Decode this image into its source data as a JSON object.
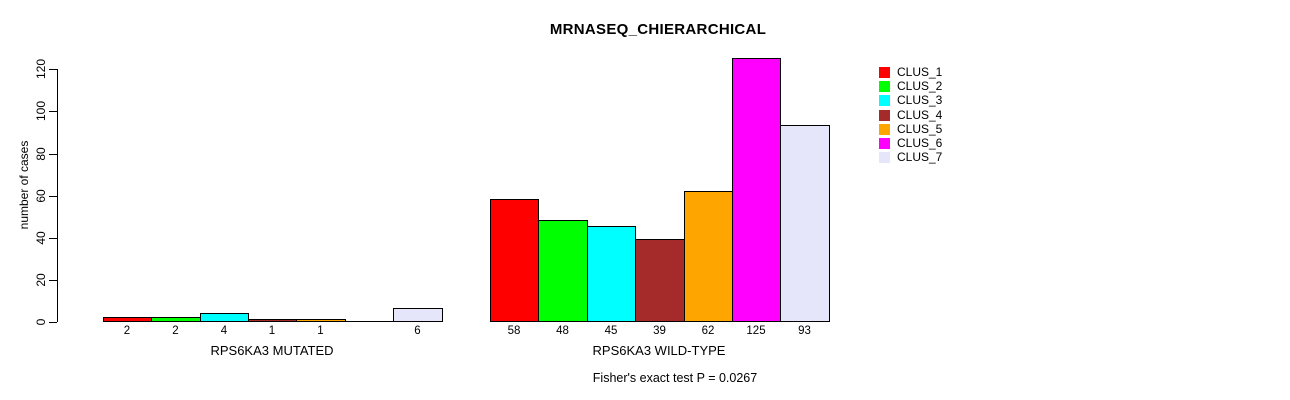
{
  "chart_data": {
    "type": "bar",
    "title": "MRNASEQ_CHIERARCHICAL",
    "ylabel": "number of cases",
    "yticks": [
      0,
      20,
      40,
      60,
      80,
      100,
      120
    ],
    "ylim": [
      0,
      125
    ],
    "grid": false,
    "legend_position": "right-outside",
    "clusters": [
      {
        "name": "CLUS_1",
        "color": "#ff0000"
      },
      {
        "name": "CLUS_2",
        "color": "#00ff00"
      },
      {
        "name": "CLUS_3",
        "color": "#00ffff"
      },
      {
        "name": "CLUS_4",
        "color": "#a52a2a"
      },
      {
        "name": "CLUS_5",
        "color": "#ffa500"
      },
      {
        "name": "CLUS_6",
        "color": "#ff00ff"
      },
      {
        "name": "CLUS_7",
        "color": "#e6e6fa"
      }
    ],
    "groups": [
      {
        "label": "RPS6KA3 MUTATED",
        "values": [
          2,
          2,
          4,
          1,
          1,
          0,
          6
        ],
        "value_labels": [
          "2",
          "2",
          "4",
          "1",
          "1",
          "",
          "6"
        ]
      },
      {
        "label": "RPS6KA3 WILD-TYPE",
        "values": [
          58,
          48,
          45,
          39,
          62,
          125,
          93
        ],
        "value_labels": [
          "58",
          "48",
          "45",
          "39",
          "62",
          "125",
          "93"
        ]
      }
    ],
    "annotation": "Fisher's exact test P = 0.0267"
  }
}
